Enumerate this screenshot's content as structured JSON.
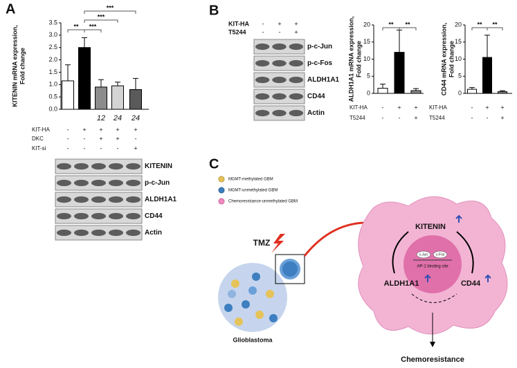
{
  "panels": [
    "A",
    "B",
    "C"
  ],
  "chart_data": [
    {
      "type": "bar",
      "y_label": [
        "KITENIN mRNA expression,",
        "Fold change"
      ],
      "categories": [
        null,
        null,
        "12",
        "24",
        "24"
      ],
      "values": [
        1.15,
        2.5,
        0.9,
        0.95,
        0.8
      ],
      "errors": [
        0.65,
        0.4,
        0.3,
        0.15,
        0.45
      ],
      "colors": [
        "#ffffff",
        "#000000",
        "#8c8c8c",
        "#d4d4d4",
        "#5a5a5a"
      ],
      "ylim": [
        0,
        3.5
      ],
      "yticks": [
        {
          "value": 0,
          "label": "0.0"
        },
        {
          "value": 0.5,
          "label": "0.5"
        },
        {
          "value": 1,
          "label": "1.0"
        },
        {
          "value": 1.5,
          "label": "1.5"
        },
        {
          "value": 2,
          "label": "2.0"
        },
        {
          "value": 2.5,
          "label": "2.5"
        },
        {
          "value": 3,
          "label": "3.0"
        },
        {
          "value": 3.5,
          "label": "3.5"
        }
      ],
      "annotations": [
        "**",
        "***",
        "***",
        "***"
      ],
      "conditions": [
        {
          "name": "KIT-HA",
          "values": [
            "-",
            "+",
            "+",
            "+",
            "+"
          ]
        },
        {
          "name": "DKC",
          "values": [
            "-",
            "-",
            "+",
            "+",
            "-"
          ]
        },
        {
          "name": "KIT-si",
          "values": [
            "-",
            "-",
            "-",
            "-",
            "+"
          ]
        }
      ]
    },
    {
      "type": "bar",
      "y_label": [
        "ALDH1A1 mRNA expression,",
        "Fold change"
      ],
      "categories": [
        null,
        null,
        null
      ],
      "values": [
        1.5,
        12,
        0.8
      ],
      "errors": [
        1.2,
        6.5,
        0.6
      ],
      "colors": [
        "#ffffff",
        "#000000",
        "#8c8c8c"
      ],
      "ylim": [
        0,
        20
      ],
      "yticks": [
        0,
        5,
        10,
        15,
        20
      ],
      "annotations": [
        "**",
        "**"
      ],
      "conditions": [
        {
          "name": "KIT-HA",
          "values": [
            "-",
            "+",
            "+"
          ]
        },
        {
          "name": "T5244",
          "values": [
            "-",
            "-",
            "+"
          ]
        }
      ]
    },
    {
      "type": "bar",
      "y_label": [
        "CD44 mRNA expression,",
        "Fold change"
      ],
      "categories": [
        null,
        null,
        null
      ],
      "values": [
        1.2,
        10.5,
        0.5
      ],
      "errors": [
        0.5,
        6.5,
        0.3
      ],
      "colors": [
        "#ffffff",
        "#000000",
        "#8c8c8c"
      ],
      "ylim": [
        0,
        20
      ],
      "yticks": [
        0,
        5,
        10,
        15,
        20
      ],
      "annotations": [
        "**",
        "**"
      ],
      "conditions": [
        {
          "name": "KIT-HA",
          "values": [
            "-",
            "+",
            "+"
          ]
        },
        {
          "name": "T5244",
          "values": [
            "-",
            "-",
            "+"
          ]
        }
      ]
    }
  ],
  "blot_a": {
    "labels": [
      "KITENIN",
      "p-c-Jun",
      "ALDH1A1",
      "CD44",
      "Actin"
    ]
  },
  "blot_b": {
    "labels": [
      "p-c-Jun",
      "p-c-Fos",
      "ALDH1A1",
      "CD44",
      "Actin"
    ],
    "conditions": [
      {
        "name": "KIT-HA",
        "values": [
          "-",
          "+",
          "+"
        ]
      },
      {
        "name": "T5244",
        "values": [
          "-",
          "-",
          "+"
        ]
      }
    ]
  },
  "diagram": {
    "legend": [
      "MGMT-methylated GBM",
      "MGMT-unmethylated GBM",
      "Chemoresistance-unmethylated GBM"
    ],
    "drug": "TMZ",
    "tumor": "Glioblastoma",
    "hub": "KITENIN",
    "left": "ALDH1A1",
    "right": "CD44",
    "site": "AP-1 binding site",
    "jun": "c-Jun",
    "fos": "c-Fos",
    "outcome": "Chemoresistance"
  }
}
